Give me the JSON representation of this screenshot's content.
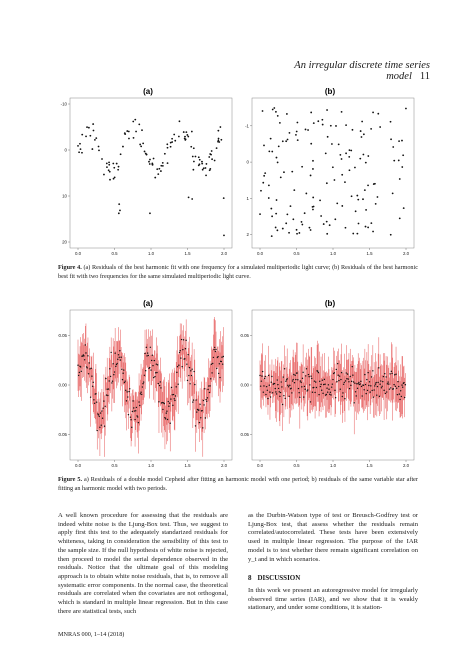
{
  "header": {
    "running_title": "An irregular discrete time series model",
    "page_number": "11"
  },
  "figure4": {
    "panel_a_label": "(a)",
    "panel_b_label": "(b)",
    "caption_label": "Figure 4.",
    "caption_text": "(a) Residuals of the best harmonic fit with one frequency for a simulated multiperiodic light curve; (b) Residuals of the best harmonic best fit with two frequencies for the same simulated multiperiodic light curve.",
    "chart_data": [
      {
        "type": "scatter",
        "title": "(a)",
        "xlim": [
          0.0,
          2.0
        ],
        "ylim": [
          -10,
          20
        ],
        "x_ticks": [
          "0.0",
          "0.5",
          "1.0",
          "1.5",
          "2.0"
        ],
        "y_ticks": [
          "-10",
          "0",
          "10",
          "20"
        ],
        "shape": "periodic residual pattern with deep negative outliers near x = 0.25, 1.0, 1.5"
      },
      {
        "type": "scatter",
        "title": "(b)",
        "xlim": [
          0.0,
          2.0
        ],
        "ylim": [
          -1.6,
          2.2
        ],
        "x_ticks": [
          "0.0",
          "0.5",
          "1.0",
          "1.5",
          "2.0"
        ],
        "y_ticks": [
          "-1",
          "0",
          "1",
          "2"
        ],
        "shape": "randomly scattered residuals"
      }
    ]
  },
  "figure5": {
    "panel_a_label": "(a)",
    "panel_b_label": "(b)",
    "caption_label": "Figure 5.",
    "caption_text": "a) Residuals of a double model Cepheid after fitting an harmonic model with one period; b) residuals of the same variable star after fitting an harmonic model with two periods.",
    "chart_data": [
      {
        "type": "scatter",
        "title": "(a)",
        "error_bars": true,
        "xlim": [
          0.0,
          2.0
        ],
        "ylim": [
          -0.07,
          0.07
        ],
        "x_ticks": [
          "0.0",
          "0.5",
          "1.0",
          "1.5",
          "2.0"
        ],
        "y_ticks": [
          "-0.05",
          "0.00",
          "0.05"
        ],
        "colors": {
          "points": "#111111",
          "error_bars": "#e03030"
        }
      },
      {
        "type": "scatter",
        "title": "(b)",
        "error_bars": true,
        "xlim": [
          0.0,
          2.0
        ],
        "ylim": [
          -0.07,
          0.07
        ],
        "x_ticks": [
          "0.0",
          "0.5",
          "1.0",
          "1.5",
          "2.0"
        ],
        "y_ticks": [
          "-0.05",
          "0.00",
          "0.05"
        ],
        "colors": {
          "points": "#111111",
          "error_bars": "#e03030"
        }
      }
    ]
  },
  "body": {
    "left_paragraph": "A well known procedure for assessing that the residuals are indeed white noise is the Ljung-Box test. Thus, we suggest to apply first this test to the adequately standarized residuals for whiteness, taking in consideration the sensibility of this test to the sample size. If the null hypothesis of white noise is rejected, then proceed to model the serial dependence observed in the residuals. Notice that the ultimate goal of this modeling approach is to obtain white noise residuals, that is, to remove all systematic error components. In the normal case, the theoretical residuals are correlated when the covariates are not orthogonal, which is standard in multiple linear regression. But in this case there are statistical tests, such",
    "right_paragraph": "as the Durbin-Watson type of test or Breusch-Godfrey test or Ljung-Box test, that assess whether the residuals remain correlated/autocorrelated. These tests have been extensively used in multiple linear regression. The purpose of the IAR model is to test whether there remain significant correlation on y_t and in which scenarios.",
    "section_number": "8",
    "section_title": "DISCUSSION",
    "discussion_paragraph": "In this work we present an autoregressive model for irregularly observed time series (IAR), and we show that it is weakly stationary, and under some conditions, it is station-"
  },
  "footer": {
    "text": "MNRAS 000, 1–14 (2018)"
  }
}
